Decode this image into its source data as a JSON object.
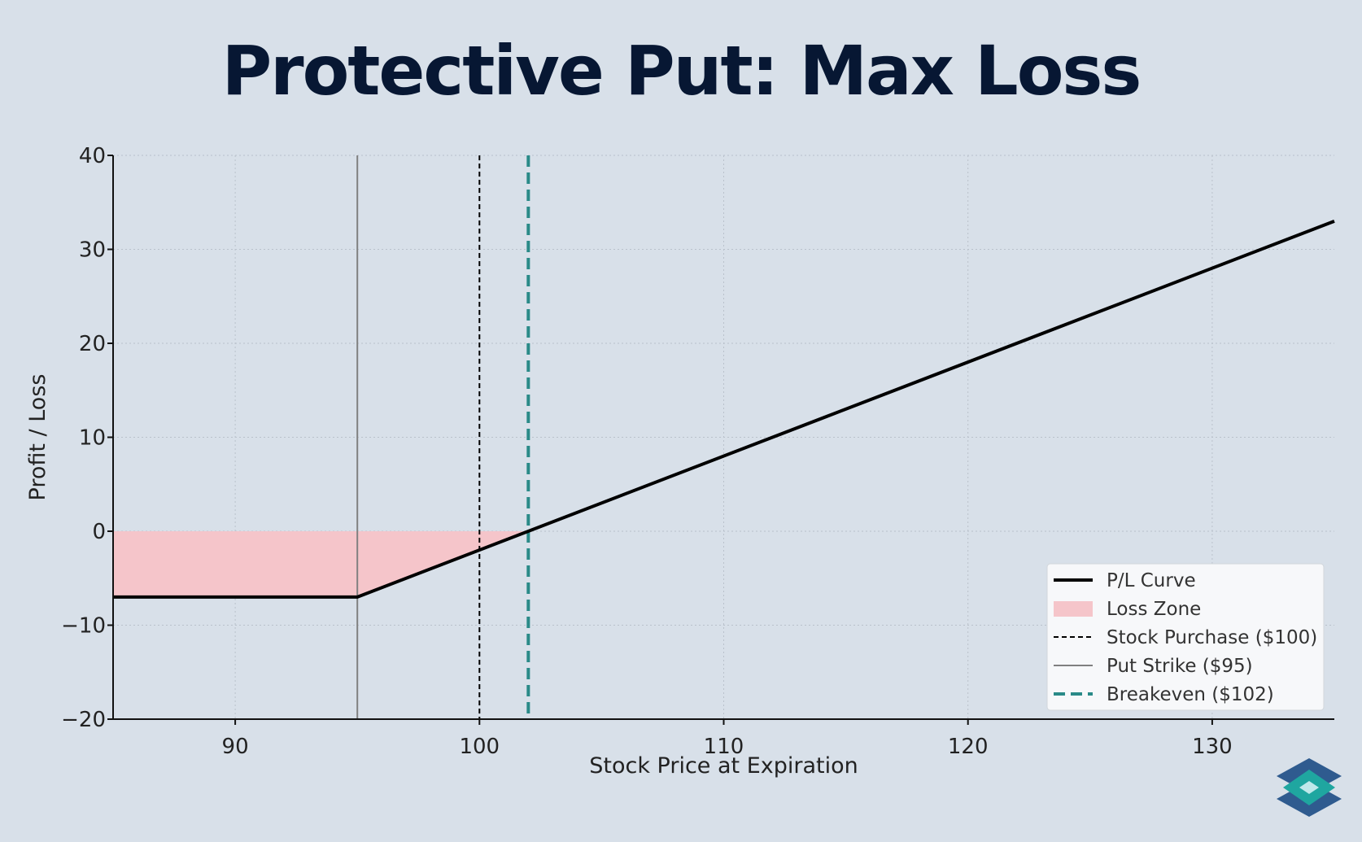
{
  "chart_data": {
    "type": "line",
    "title": "Protective Put: Max Loss",
    "xlabel": "Stock Price at Expiration",
    "ylabel": "Profit / Loss",
    "xlim": [
      85,
      135
    ],
    "ylim": [
      -20,
      40
    ],
    "xticks": [
      90,
      100,
      110,
      120,
      130
    ],
    "yticks": [
      -20,
      -10,
      0,
      10,
      20,
      30,
      40
    ],
    "ytick_labels": [
      "−20",
      "−10",
      "0",
      "10",
      "20",
      "30",
      "40"
    ],
    "grid": true,
    "legend_position": "lower-right",
    "series": [
      {
        "name": "P/L Curve",
        "color": "#000000",
        "x": [
          85,
          95,
          135
        ],
        "y": [
          -7,
          -7,
          33
        ]
      }
    ],
    "loss_zone": {
      "name": "Loss Zone",
      "color": "#f5c5ca",
      "x": [
        85,
        95,
        102
      ],
      "y": [
        -7,
        -7,
        0
      ]
    },
    "reference_lines": [
      {
        "name": "Stock Purchase ($100)",
        "x": 100,
        "color": "#000000",
        "style": "dashed"
      },
      {
        "name": "Put Strike ($95)",
        "x": 95,
        "color": "#808080",
        "style": "solid"
      },
      {
        "name": "Breakeven ($102)",
        "x": 102,
        "color": "#2a8a88",
        "style": "thick-dashed"
      }
    ],
    "legend": [
      {
        "label": "P/L Curve",
        "kind": "line",
        "color": "#000000"
      },
      {
        "label": "Loss Zone",
        "kind": "patch",
        "color": "#f5c5ca"
      },
      {
        "label": "Stock Purchase ($100)",
        "kind": "dashed",
        "color": "#000000"
      },
      {
        "label": "Put Strike ($95)",
        "kind": "thin",
        "color": "#808080"
      },
      {
        "label": "Breakeven ($102)",
        "kind": "thick-dashed",
        "color": "#2a8a88"
      }
    ]
  },
  "logo": {
    "icon": "layers-logo-icon",
    "colors": [
      "#2f5b8f",
      "#1fa6a0",
      "#bfe8ea"
    ]
  }
}
